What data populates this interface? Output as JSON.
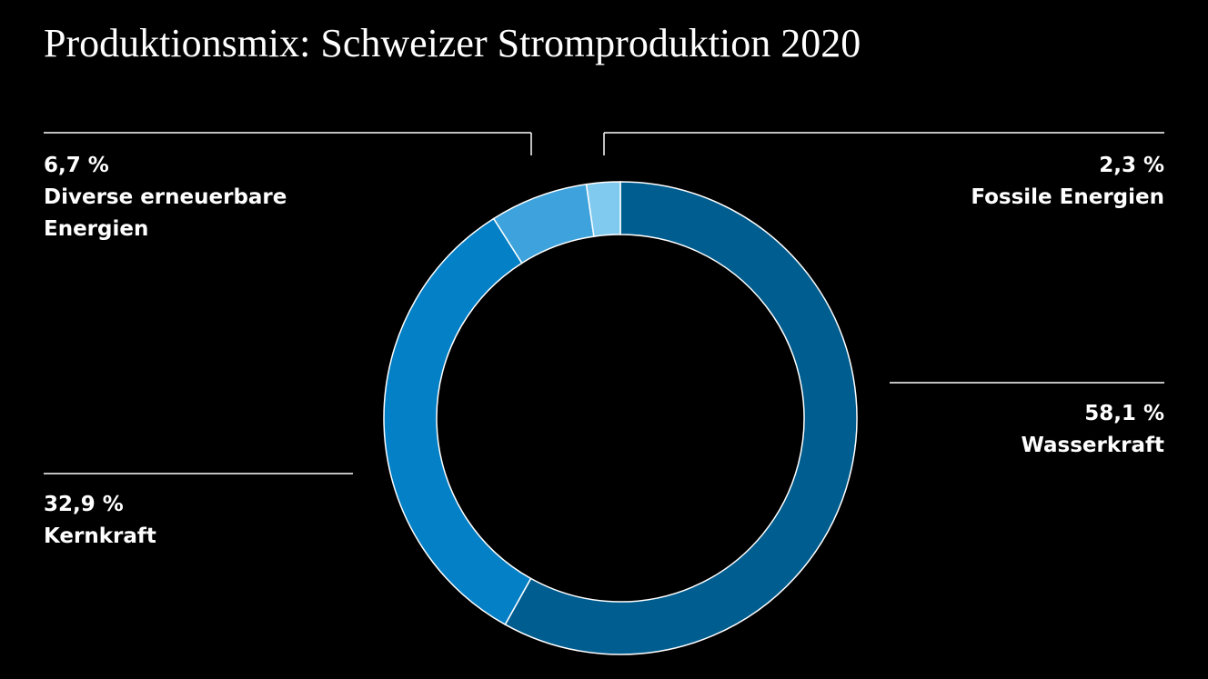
{
  "chart_data": {
    "type": "donut",
    "title": "Produktionsmix: Schweizer Stromproduktion 2020",
    "categories": [
      "Wasserkraft",
      "Kernkraft",
      "Diverse erneuerbare Energien",
      "Fossile Energien"
    ],
    "values": [
      58.1,
      32.9,
      6.7,
      2.3
    ],
    "value_labels": [
      "58,1 %",
      "32,9 %",
      "6,7 %",
      "2,3 %"
    ],
    "colors": [
      "#005d8f",
      "#0380c6",
      "#3ea3dc",
      "#80caf0"
    ]
  }
}
